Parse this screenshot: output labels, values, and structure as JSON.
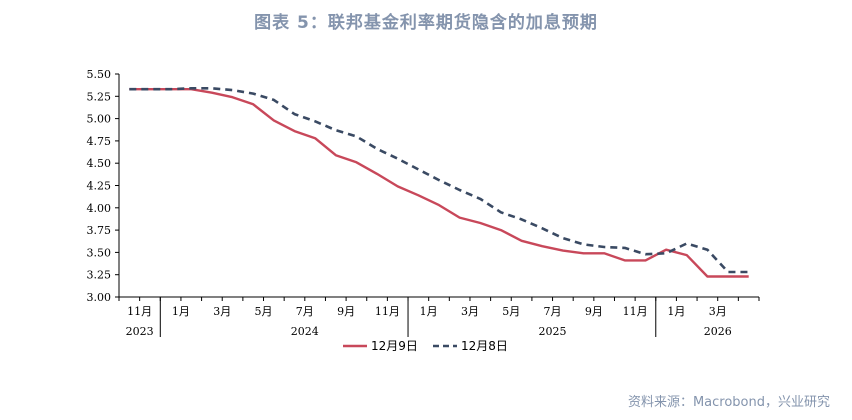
{
  "title": "图表 5：联邦基金利率期货隐含的加息预期",
  "source": "资料来源：Macrobond，兴业研究",
  "chart_data": {
    "type": "line",
    "ylim": [
      3.0,
      5.5
    ],
    "yticks": [
      "5.50",
      "5.25",
      "5.00",
      "4.75",
      "4.50",
      "4.25",
      "4.00",
      "3.75",
      "3.50",
      "3.25",
      "3.00"
    ],
    "x_month_ticks": [
      {
        "i": 0.5,
        "label": "11月"
      },
      {
        "i": 2.5,
        "label": "1月"
      },
      {
        "i": 4.5,
        "label": "3月"
      },
      {
        "i": 6.5,
        "label": "5月"
      },
      {
        "i": 8.5,
        "label": "7月"
      },
      {
        "i": 10.5,
        "label": "9月"
      },
      {
        "i": 12.5,
        "label": "11月"
      },
      {
        "i": 14.5,
        "label": "1月"
      },
      {
        "i": 16.5,
        "label": "3月"
      },
      {
        "i": 18.5,
        "label": "5月"
      },
      {
        "i": 20.5,
        "label": "7月"
      },
      {
        "i": 22.5,
        "label": "9月"
      },
      {
        "i": 24.5,
        "label": "11月"
      },
      {
        "i": 26.5,
        "label": "1月"
      },
      {
        "i": 28.5,
        "label": "3月"
      }
    ],
    "x_year_ticks": [
      {
        "i": 0.5,
        "label": "2023"
      },
      {
        "i": 8.5,
        "label": "2024"
      },
      {
        "i": 20.5,
        "label": "2025"
      },
      {
        "i": 28.5,
        "label": "2026"
      }
    ],
    "x_dividers": [
      2,
      14,
      26
    ],
    "x_count": 31,
    "legend_position": "bottom-center",
    "series": [
      {
        "name": "12月9日",
        "color": "#c8485a",
        "style": "solid",
        "x": [
          0,
          1,
          2,
          3,
          4,
          5,
          6,
          7,
          8,
          9,
          10,
          11,
          12,
          13,
          14,
          15,
          16,
          17,
          18,
          19,
          20,
          21,
          22,
          23,
          24,
          25,
          26,
          27,
          28,
          29,
          30
        ],
        "values": [
          5.33,
          5.33,
          5.33,
          5.33,
          5.29,
          5.24,
          5.16,
          4.98,
          4.86,
          4.78,
          4.59,
          4.51,
          4.38,
          4.24,
          4.14,
          4.03,
          3.89,
          3.83,
          3.75,
          3.63,
          3.57,
          3.52,
          3.49,
          3.49,
          3.41,
          3.41,
          3.53,
          3.47,
          3.23,
          3.23,
          3.23
        ]
      },
      {
        "name": "12月8日",
        "color": "#3a4a63",
        "style": "dashed",
        "x": [
          0,
          1,
          2,
          3,
          4,
          5,
          6,
          7,
          8,
          9,
          10,
          11,
          12,
          13,
          14,
          15,
          16,
          17,
          18,
          19,
          20,
          21,
          22,
          23,
          24,
          25,
          26,
          27,
          28,
          29,
          30
        ],
        "values": [
          5.33,
          5.33,
          5.33,
          5.34,
          5.34,
          5.32,
          5.28,
          5.21,
          5.05,
          4.97,
          4.87,
          4.8,
          4.66,
          4.55,
          4.43,
          4.31,
          4.2,
          4.1,
          3.95,
          3.87,
          3.77,
          3.66,
          3.59,
          3.56,
          3.55,
          3.48,
          3.49,
          3.6,
          3.53,
          3.28,
          3.28
        ]
      }
    ]
  }
}
